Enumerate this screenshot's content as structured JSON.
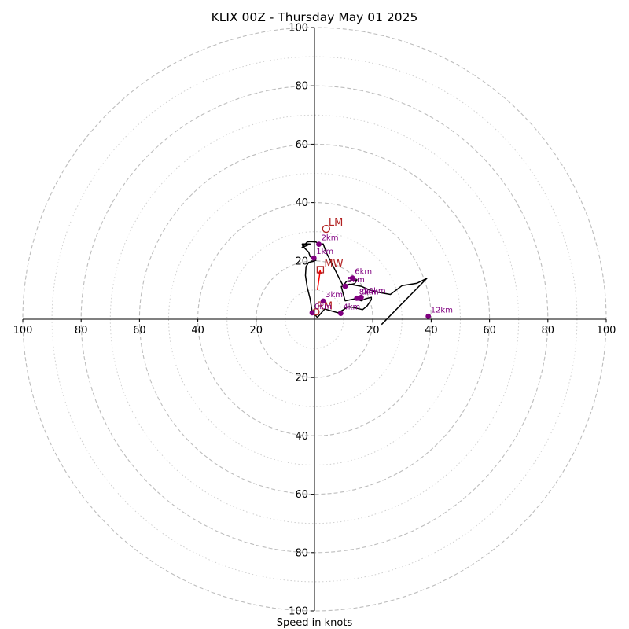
{
  "chart_data": {
    "type": "hodograph",
    "title": "KLIX 00Z - Thursday May 01 2025",
    "xlabel": "Speed in knots",
    "units": "knots",
    "range": [
      -100,
      100
    ],
    "rings_major": [
      20,
      40,
      60,
      80,
      100
    ],
    "rings_minor": [
      10,
      30,
      50,
      70,
      90
    ],
    "x_ticks": [
      {
        "value": -100,
        "label": "100"
      },
      {
        "value": -80,
        "label": "80"
      },
      {
        "value": -60,
        "label": "60"
      },
      {
        "value": -40,
        "label": "40"
      },
      {
        "value": -20,
        "label": "20"
      },
      {
        "value": 0,
        "label": ""
      },
      {
        "value": 20,
        "label": "20"
      },
      {
        "value": 40,
        "label": "40"
      },
      {
        "value": 60,
        "label": "60"
      },
      {
        "value": 80,
        "label": "80"
      },
      {
        "value": 100,
        "label": "100"
      }
    ],
    "y_ticks": [
      {
        "value": 100,
        "label": "100"
      },
      {
        "value": 80,
        "label": "80"
      },
      {
        "value": 60,
        "label": "60"
      },
      {
        "value": 40,
        "label": "40"
      },
      {
        "value": 20,
        "label": "20"
      },
      {
        "value": 0,
        "label": ""
      },
      {
        "value": -20,
        "label": "20"
      },
      {
        "value": -40,
        "label": "40"
      },
      {
        "value": -60,
        "label": "60"
      },
      {
        "value": -80,
        "label": "80"
      },
      {
        "value": -100,
        "label": "100"
      }
    ],
    "trace": {
      "color": "#000000",
      "points": [
        [
          -0.8,
          2.6
        ],
        [
          -1.5,
          7
        ],
        [
          -2.5,
          11
        ],
        [
          -3.1,
          15
        ],
        [
          -2.9,
          18
        ],
        [
          -2,
          19.5
        ],
        [
          -0.5,
          19.8
        ],
        [
          0.5,
          20.2
        ],
        [
          -1.5,
          21.5
        ],
        [
          -2,
          23
        ],
        [
          -4,
          25
        ],
        [
          -4.2,
          25.8
        ],
        [
          -1.5,
          25.8
        ],
        [
          -4.3,
          24.5
        ],
        [
          -2.5,
          26.5
        ],
        [
          -1.5,
          26.6
        ],
        [
          0.5,
          26.5
        ],
        [
          1.5,
          25.8
        ],
        [
          3,
          25.8
        ],
        [
          4,
          23
        ],
        [
          6.5,
          18
        ],
        [
          8.5,
          14
        ],
        [
          9.8,
          11.5
        ],
        [
          11,
          13
        ],
        [
          14.5,
          13.5
        ],
        [
          13.8,
          12.2
        ],
        [
          9.2,
          11.2
        ],
        [
          9.8,
          8.8
        ],
        [
          10.5,
          6.3
        ],
        [
          14,
          7
        ],
        [
          16,
          6.3
        ],
        [
          17.5,
          7
        ],
        [
          19.5,
          7.5
        ],
        [
          19.5,
          6.7
        ],
        [
          18,
          4.5
        ],
        [
          16.5,
          3.3
        ],
        [
          12,
          4.3
        ],
        [
          10.5,
          3.9
        ],
        [
          11.5,
          4.3
        ],
        [
          10,
          3.3
        ],
        [
          8,
          2.2
        ],
        [
          3.5,
          3.5
        ],
        [
          1,
          0.6
        ],
        [
          -0.8,
          2.6
        ]
      ],
      "tail": [
        [
          9.8,
          11.5
        ],
        [
          12,
          12
        ],
        [
          16,
          11.3
        ],
        [
          19,
          10
        ],
        [
          22,
          9.2
        ],
        [
          26,
          8.5
        ],
        [
          30,
          11.5
        ],
        [
          35,
          12.3
        ],
        [
          38.5,
          14
        ],
        [
          23,
          -1.8
        ]
      ]
    },
    "km_markers": {
      "color": "#800080",
      "points": [
        {
          "label": "0km",
          "x": -0.8,
          "y": 2.2
        },
        {
          "label": "1km",
          "x": -0.2,
          "y": 21.0
        },
        {
          "label": "2km",
          "x": 1.5,
          "y": 25.7
        },
        {
          "label": "3km",
          "x": 3.0,
          "y": 6.2
        },
        {
          "label": "4km",
          "x": 9.0,
          "y": 2.0
        },
        {
          "label": "5km",
          "x": 10.5,
          "y": 11.3
        },
        {
          "label": "6km",
          "x": 13.0,
          "y": 14.1
        },
        {
          "label": "8km",
          "x": 14.5,
          "y": 7.2
        },
        {
          "label": "9km",
          "x": 15.3,
          "y": 7.2
        },
        {
          "label": "10km",
          "x": 16.0,
          "y": 7.5
        },
        {
          "label": "12km",
          "x": 39.0,
          "y": 1.0
        }
      ]
    },
    "storm_motion": {
      "color": "#b22222",
      "lm": {
        "label": "LM",
        "x": 4.0,
        "y": 31.0
      },
      "mw": {
        "label": "MW",
        "x": 2.0,
        "y": 17.0
      },
      "rm": {
        "label": "RM",
        "x": 0.5,
        "y": 2.5
      },
      "arrow": {
        "from": [
          1.0,
          10.0
        ],
        "to": [
          2.0,
          17.0
        ]
      }
    },
    "grid": true
  }
}
